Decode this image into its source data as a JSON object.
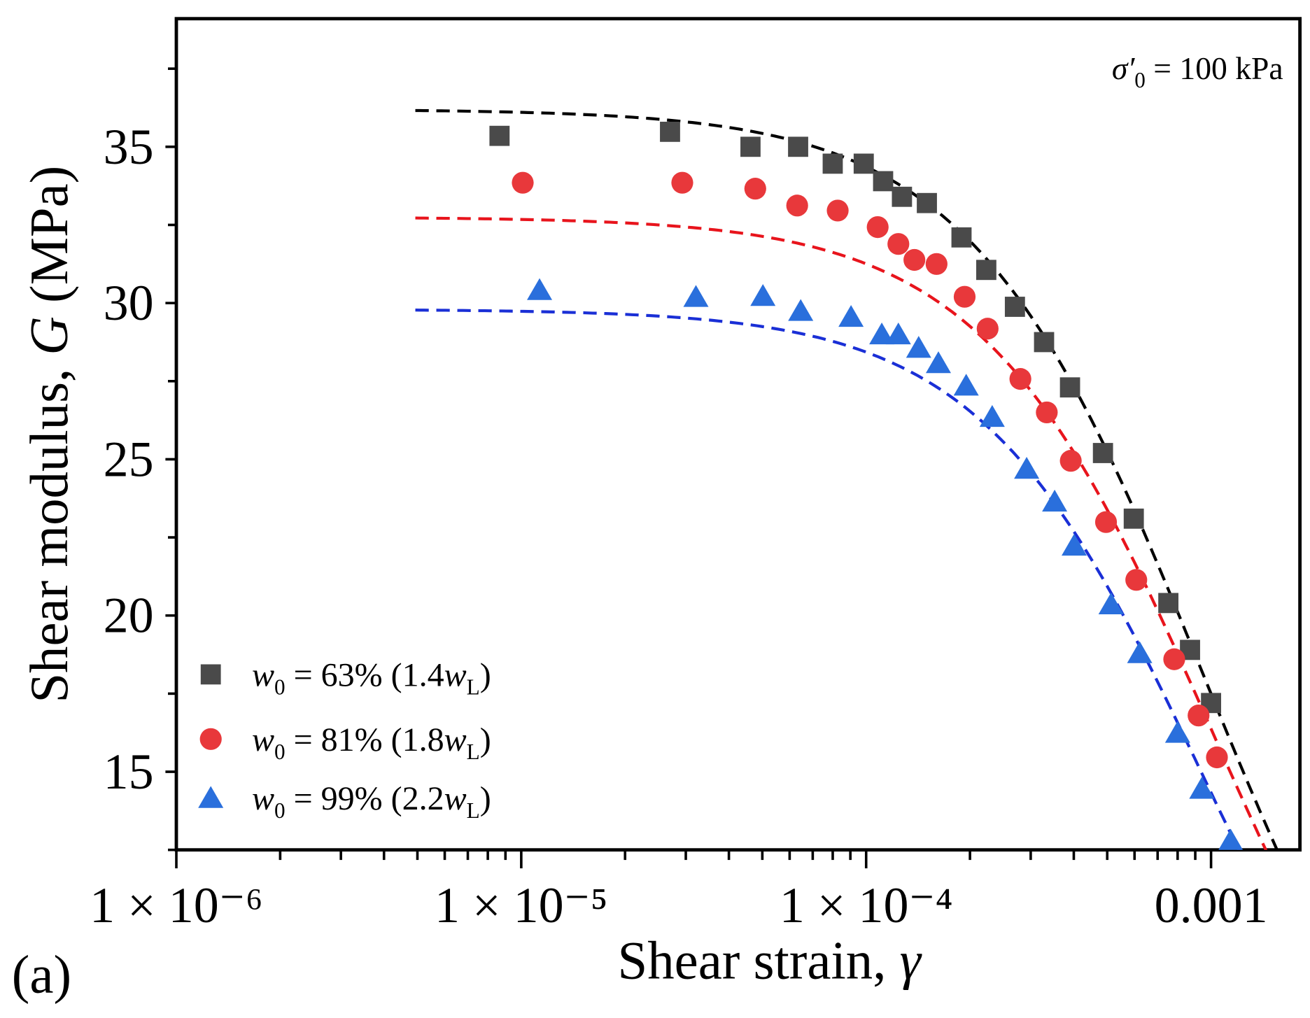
{
  "chart_data": {
    "type": "scatter",
    "panel_label": "(a)",
    "annotation": {
      "symbol": "σ′",
      "sub": "0",
      "text": " = 100 kPa"
    },
    "xlabel": {
      "text": "Shear strain, ",
      "var": "γ"
    },
    "ylabel": {
      "text": "Shear modulus, ",
      "var": "G",
      "unit": " (MPa)"
    },
    "xscale": "log",
    "xlim": [
      1e-06,
      0.00181
    ],
    "ylim": [
      12.5,
      39.1
    ],
    "xticks": [
      {
        "value": 1e-06,
        "label": "1 × 10⁻⁶"
      },
      {
        "value": 1e-05,
        "label": "1 × 10⁻⁵"
      },
      {
        "value": 0.0001,
        "label": "1 × 10⁻⁴"
      },
      {
        "value": 0.001,
        "label": "0.001"
      }
    ],
    "yticks": [
      {
        "value": 15,
        "label": "15"
      },
      {
        "value": 20,
        "label": "20"
      },
      {
        "value": 25,
        "label": "25"
      },
      {
        "value": 30,
        "label": "30"
      },
      {
        "value": 35,
        "label": "35"
      }
    ],
    "legend_position": "bottom-left",
    "series": [
      {
        "name": "w0 = 63% (1.4wL)",
        "legend": {
          "v": "w",
          "s": "0",
          "t": " = 63% (1.4",
          "v2": "w",
          "s2": "L",
          "c": ")"
        },
        "marker": "square",
        "color": "#4a4a4a",
        "x": [
          8.65e-06,
          2.7e-05,
          4.62e-05,
          6.35e-05,
          8e-05,
          9.84e-05,
          0.000112,
          0.000127,
          0.00015,
          0.000189,
          0.000223,
          0.00027,
          0.000328,
          0.00039,
          0.000486,
          0.000597,
          0.000752,
          0.000869,
          0.001
        ],
        "y": [
          35.35,
          35.48,
          35.0,
          35.0,
          34.46,
          34.46,
          33.9,
          33.4,
          33.2,
          32.1,
          31.06,
          29.88,
          28.75,
          27.3,
          25.2,
          23.1,
          20.4,
          18.9,
          17.2
        ],
        "fit": {
          "color": "#000000",
          "Gmax": 36.2,
          "gamma_r": 0.00095,
          "a": 1.3,
          "x_range": [
            4.93e-06,
            0.0016
          ]
        }
      },
      {
        "name": "w0 = 81% (1.8wL)",
        "legend": {
          "v": "w",
          "s": "0",
          "t": " = 81% (1.8",
          "v2": "w",
          "s2": "L",
          "c": ")"
        },
        "marker": "circle",
        "color": "#e8383b",
        "x": [
          1.01e-05,
          2.93e-05,
          4.77e-05,
          6.31e-05,
          8.27e-05,
          0.000108,
          0.000124,
          0.000138,
          0.00016,
          0.000193,
          0.000225,
          0.00028,
          0.000334,
          0.000392,
          0.000496,
          0.000607,
          0.000782,
          0.00092,
          0.00104
        ],
        "y": [
          33.85,
          33.85,
          33.66,
          33.12,
          32.96,
          32.43,
          31.89,
          31.38,
          31.25,
          30.2,
          29.18,
          27.57,
          26.5,
          24.95,
          22.99,
          21.14,
          18.6,
          16.8,
          15.46
        ],
        "fit": {
          "color": "#e8141c",
          "Gmax": 32.75,
          "gamma_r": 0.001,
          "a": 1.32,
          "x_range": [
            4.93e-06,
            0.0016
          ]
        }
      },
      {
        "name": "w0 = 99% (2.2wL)",
        "legend": {
          "v": "w",
          "s": "0",
          "t": " = 99% (2.2",
          "v2": "w",
          "s2": "L",
          "c": ")"
        },
        "marker": "triangle",
        "color": "#2a6fdc",
        "x": [
          1.13e-05,
          3.21e-05,
          5.02e-05,
          6.46e-05,
          9.04e-05,
          0.000111,
          0.000124,
          0.000142,
          0.000162,
          0.000195,
          0.000232,
          0.000292,
          0.000352,
          0.000401,
          0.000513,
          0.000621,
          0.0008,
          0.00094,
          0.00114
        ],
        "y": [
          30.42,
          30.2,
          30.23,
          29.75,
          29.56,
          29.0,
          29.0,
          28.57,
          28.08,
          27.36,
          26.36,
          24.7,
          23.65,
          22.24,
          20.36,
          18.8,
          16.25,
          14.46,
          12.8
        ],
        "fit": {
          "color": "#1a2fd6",
          "Gmax": 29.8,
          "gamma_r": 0.000945,
          "a": 1.35,
          "x_range": [
            4.93e-06,
            0.0016
          ]
        }
      }
    ]
  }
}
